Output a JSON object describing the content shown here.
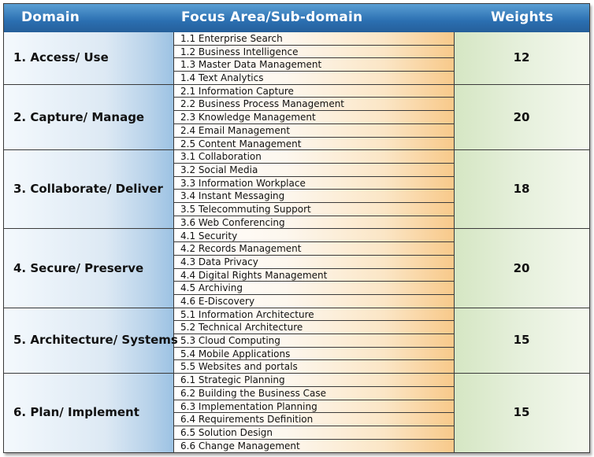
{
  "header": {
    "domain": "Domain",
    "focus": "Focus Area/Sub-domain",
    "weights": "Weights"
  },
  "groups": [
    {
      "domain": "1. Access/ Use",
      "weight": "12",
      "items": [
        "1.1 Enterprise Search",
        "1.2 Business Intelligence",
        "1.3 Master Data Management",
        "1.4 Text Analytics"
      ]
    },
    {
      "domain": "2. Capture/ Manage",
      "weight": "20",
      "items": [
        "2.1 Information Capture",
        "2.2 Business Process Management",
        "2.3 Knowledge Management",
        "2.4 Email Management",
        "2.5 Content Management"
      ]
    },
    {
      "domain": "3. Collaborate/ Deliver",
      "weight": "18",
      "items": [
        "3.1 Collaboration",
        "3.2 Social Media",
        "3.3 Information Workplace",
        "3.4 Instant Messaging",
        "3.5 Telecommuting Support",
        "3.6 Web Conferencing"
      ]
    },
    {
      "domain": "4. Secure/ Preserve",
      "weight": "20",
      "items": [
        "4.1 Security",
        "4.2 Records Management",
        "4.3 Data Privacy",
        "4.4 Digital Rights Management",
        "4.5 Archiving",
        "4.6 E-Discovery"
      ]
    },
    {
      "domain": "5. Architecture/ Systems",
      "weight": "15",
      "items": [
        "5.1 Information Architecture",
        "5.2 Technical Architecture",
        "5.3 Cloud Computing",
        "5.4 Mobile Applications",
        "5.5 Websites and portals"
      ]
    },
    {
      "domain": "6. Plan/ Implement",
      "weight": "15",
      "items": [
        "6.1 Strategic Planning",
        "6.2 Building the Business Case",
        "6.3 Implementation Planning",
        "6.4 Requirements Definition",
        "6.5 Solution Design",
        "6.6 Change Management"
      ]
    }
  ]
}
